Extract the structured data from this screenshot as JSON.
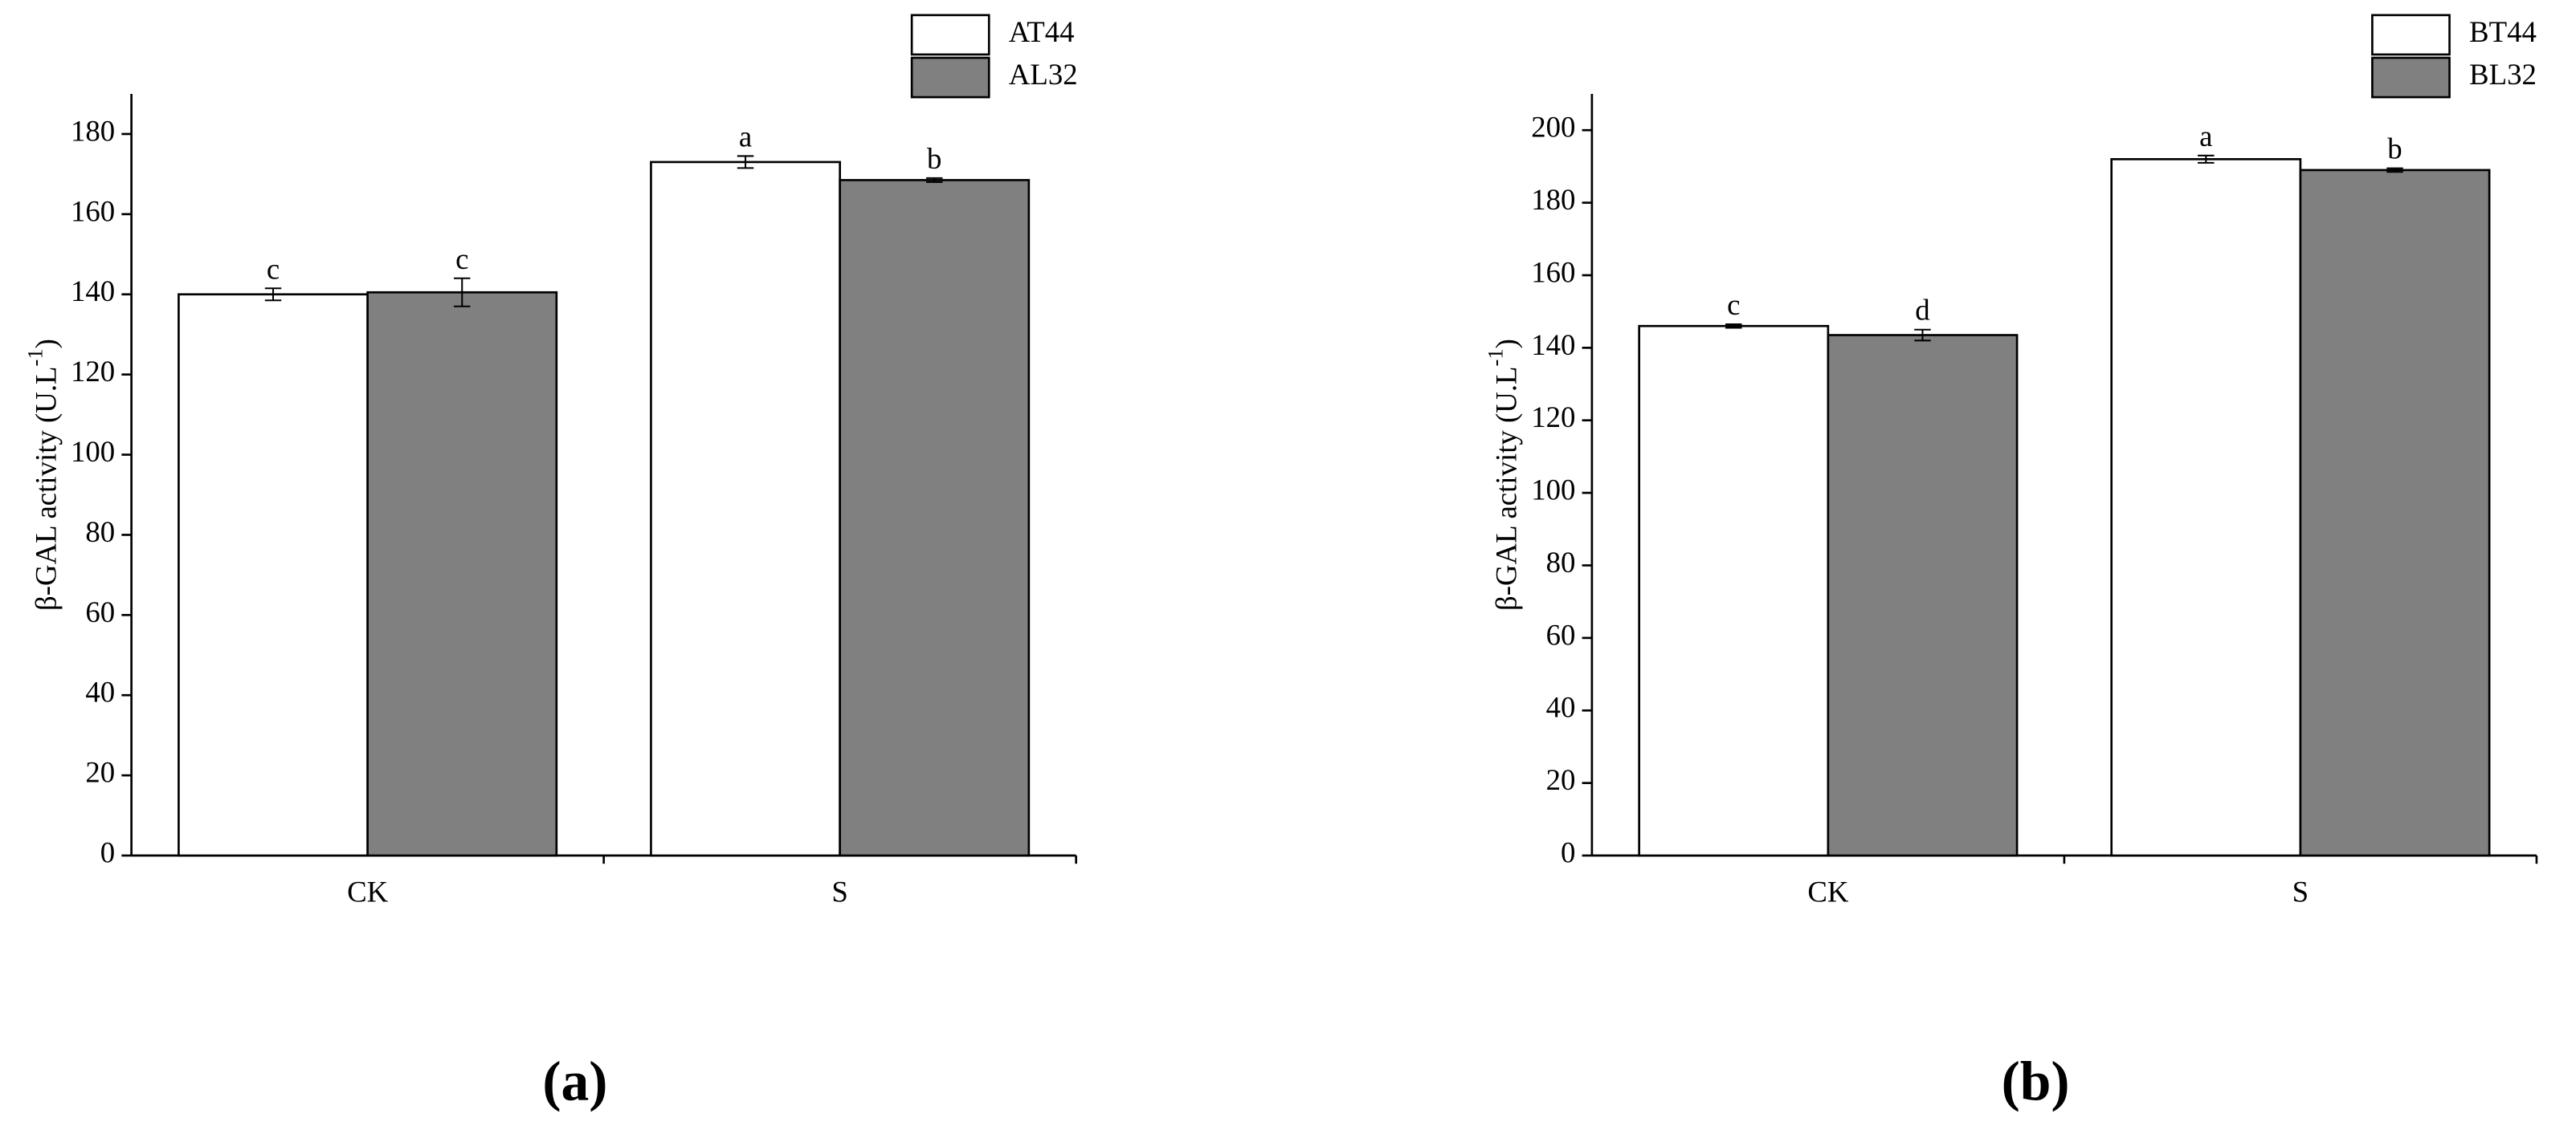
{
  "chart_data": [
    {
      "type": "bar",
      "panel_label": "(a)",
      "ylabel": [
        "β-GAL activity (U.L",
        "-1",
        ")"
      ],
      "categories": [
        "CK",
        "S"
      ],
      "ylim": [
        0,
        190
      ],
      "yticks": [
        0,
        20,
        40,
        60,
        80,
        100,
        120,
        140,
        160,
        180
      ],
      "series": [
        {
          "name": "AT44",
          "color": "#ffffff",
          "values": [
            140,
            173
          ],
          "errors": [
            1.5,
            1.5
          ],
          "labels": [
            "c",
            "a"
          ]
        },
        {
          "name": "AL32",
          "color": "#808080",
          "values": [
            140.5,
            168.5
          ],
          "errors": [
            3.5,
            0.5
          ],
          "labels": [
            "c",
            "b"
          ]
        }
      ]
    },
    {
      "type": "bar",
      "panel_label": "(b)",
      "ylabel": [
        "β-GAL activity (U.L",
        "-1",
        ")"
      ],
      "categories": [
        "CK",
        "S"
      ],
      "ylim": [
        0,
        210
      ],
      "yticks": [
        0,
        20,
        40,
        60,
        80,
        100,
        120,
        140,
        160,
        180,
        200
      ],
      "series": [
        {
          "name": "BT44",
          "color": "#ffffff",
          "values": [
            146,
            192
          ],
          "errors": [
            0.5,
            1
          ],
          "labels": [
            "c",
            "a"
          ]
        },
        {
          "name": "BL32",
          "color": "#808080",
          "values": [
            143.5,
            189
          ],
          "errors": [
            1.5,
            0.5
          ],
          "labels": [
            "d",
            "b"
          ]
        }
      ]
    }
  ]
}
